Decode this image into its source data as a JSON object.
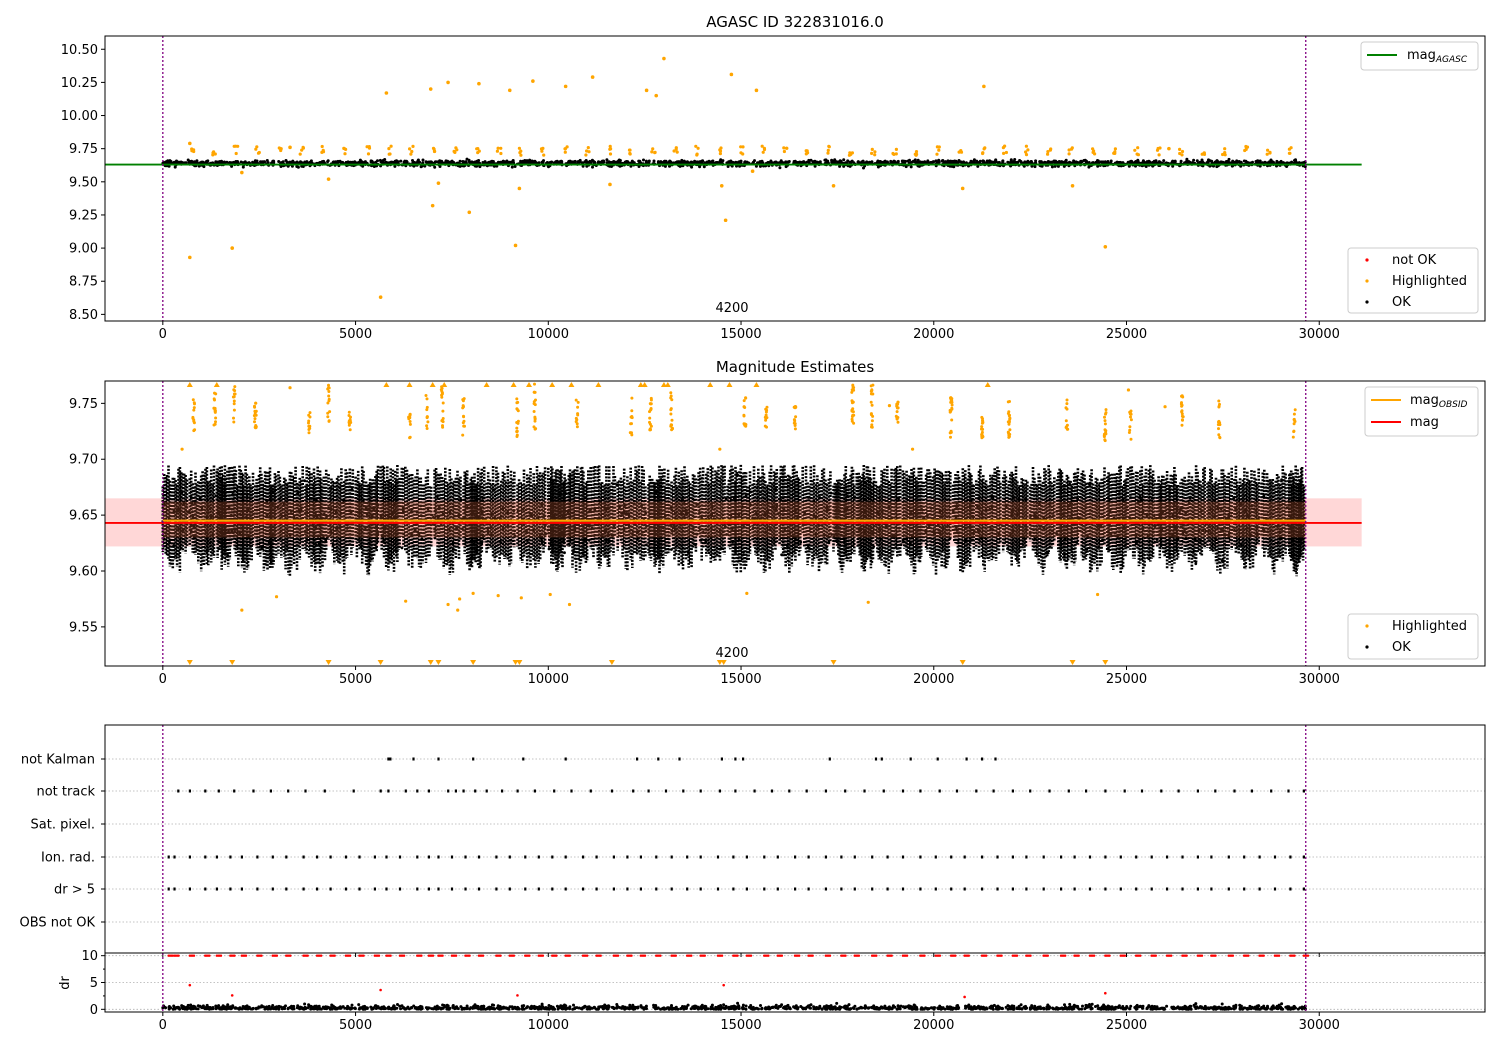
{
  "chart_data": [
    {
      "type": "scatter",
      "title": "AGASC ID 322831016.0",
      "xlim": [
        -1500,
        34300
      ],
      "ylim": [
        8.45,
        10.6
      ],
      "xticks": [
        0,
        5000,
        10000,
        15000,
        20000,
        25000,
        30000
      ],
      "yticks": [
        8.5,
        8.75,
        9.0,
        9.25,
        9.5,
        9.75,
        10.0,
        10.25,
        10.5
      ],
      "ytick_labels": [
        "8.50",
        "8.75",
        "9.00",
        "9.25",
        "9.50",
        "9.75",
        "10.00",
        "10.25",
        "10.50"
      ],
      "annotation": {
        "text": "4200",
        "x": 14700,
        "y": 8.5
      },
      "vlines": [
        0,
        29650
      ],
      "hline": {
        "y": 9.63,
        "xmin": -1500,
        "xmax": 31100,
        "color": "#008000"
      },
      "ok_band": {
        "center": 9.64,
        "halfwidth": 0.035,
        "xmin": 0,
        "xmax": 29650,
        "density": 2200
      },
      "highlighted_points": [
        [
          700,
          8.93
        ],
        [
          1800,
          9.0
        ],
        [
          5650,
          8.63
        ],
        [
          5800,
          10.17
        ],
        [
          6950,
          10.2
        ],
        [
          7000,
          9.32
        ],
        [
          7150,
          9.49
        ],
        [
          7400,
          10.25
        ],
        [
          7950,
          9.27
        ],
        [
          8200,
          10.24
        ],
        [
          9000,
          10.19
        ],
        [
          9150,
          9.02
        ],
        [
          9250,
          9.45
        ],
        [
          9600,
          10.26
        ],
        [
          10450,
          10.22
        ],
        [
          11150,
          10.29
        ],
        [
          11600,
          9.48
        ],
        [
          12550,
          10.19
        ],
        [
          12800,
          10.15
        ],
        [
          13000,
          10.43
        ],
        [
          14500,
          9.47
        ],
        [
          14600,
          9.21
        ],
        [
          14750,
          10.31
        ],
        [
          15400,
          10.19
        ],
        [
          17400,
          9.47
        ],
        [
          20750,
          9.45
        ],
        [
          21300,
          10.22
        ],
        [
          23600,
          9.47
        ],
        [
          24450,
          9.01
        ],
        [
          4300,
          9.52
        ],
        [
          2050,
          9.57
        ],
        [
          700,
          9.79
        ],
        [
          3300,
          9.76
        ],
        [
          15300,
          9.58
        ],
        [
          26100,
          9.75
        ]
      ],
      "legend_top": [
        {
          "name": "mag",
          "sub": "AGASC",
          "color": "#008000"
        }
      ],
      "legend_bottom": [
        {
          "name": "not OK",
          "color": "#ff0000"
        },
        {
          "name": "Highlighted",
          "color": "#ffa500"
        },
        {
          "name": "OK",
          "color": "#000000"
        }
      ]
    },
    {
      "type": "scatter",
      "title": "Magnitude Estimates",
      "xlim": [
        -1500,
        34300
      ],
      "ylim": [
        9.515,
        9.77
      ],
      "xticks": [
        0,
        5000,
        10000,
        15000,
        20000,
        25000,
        30000
      ],
      "yticks": [
        9.55,
        9.6,
        9.65,
        9.7,
        9.75
      ],
      "ytick_labels": [
        "9.55",
        "9.60",
        "9.65",
        "9.70",
        "9.75"
      ],
      "annotation": {
        "text": "4200",
        "x": 14700,
        "y": 9.52
      },
      "vlines": [
        0,
        29650
      ],
      "mag_line": {
        "y": 9.643,
        "color": "#ff0000",
        "xmin": -1500,
        "xmax": 31100
      },
      "mag_obsid_line": {
        "y": 9.645,
        "color": "#ffa500",
        "xmin": 0,
        "xmax": 29650
      },
      "mag_band": {
        "low": 9.622,
        "high": 9.665
      },
      "obs_starts": [
        0,
        700,
        1400,
        1800,
        2400,
        3000,
        3700,
        4300,
        5000,
        5650,
        6200,
        7050,
        7800,
        8400,
        9200,
        10000,
        10500,
        11100,
        11800,
        12600,
        13200,
        13900,
        14650,
        15300,
        16000,
        16600,
        17400,
        18000,
        18500,
        19200,
        19800,
        20500,
        21100,
        21800,
        22500,
        23200,
        23800,
        24500,
        25100,
        25800,
        26400,
        27100,
        27800,
        28500,
        29200
      ],
      "highlighted_clusters": [
        800,
        1350,
        1850,
        2400,
        3800,
        4300,
        4850,
        6400,
        6850,
        7250,
        7800,
        9200,
        9650,
        10750,
        12150,
        12650,
        13200,
        15100,
        15650,
        16400,
        17900,
        18400,
        19050,
        20450,
        21250,
        21950,
        23450,
        24450,
        25100,
        26450,
        27400,
        29350
      ],
      "highlighted_points": [
        [
          2050,
          9.565
        ],
        [
          2950,
          9.577
        ],
        [
          6300,
          9.573
        ],
        [
          7400,
          9.57
        ],
        [
          7650,
          9.565
        ],
        [
          7700,
          9.575
        ],
        [
          8050,
          9.58
        ],
        [
          8700,
          9.578
        ],
        [
          9300,
          9.576
        ],
        [
          10050,
          9.579
        ],
        [
          10550,
          9.57
        ],
        [
          15150,
          9.58
        ],
        [
          18300,
          9.572
        ],
        [
          24250,
          9.579
        ],
        [
          14450,
          9.709
        ],
        [
          19450,
          9.709
        ],
        [
          25050,
          9.762
        ],
        [
          3300,
          9.764
        ],
        [
          500,
          9.709
        ],
        [
          12500,
          9.766
        ],
        [
          18850,
          9.748
        ],
        [
          26000,
          9.747
        ]
      ],
      "upper_markers": [
        700,
        1400,
        5800,
        6400,
        7000,
        7300,
        8400,
        9100,
        9500,
        10100,
        10600,
        11300,
        12400,
        12500,
        13000,
        13100,
        14200,
        14700,
        15400,
        21400
      ],
      "lower_markers": [
        700,
        1800,
        4300,
        5650,
        6950,
        7150,
        8050,
        9150,
        9250,
        11650,
        14450,
        14550,
        17400,
        20750,
        23600,
        24450
      ],
      "legend_top": [
        {
          "name": "mag",
          "sub": "OBSID",
          "color": "#ffa500"
        },
        {
          "name": "mag",
          "sub": "",
          "color": "#ff0000"
        }
      ],
      "legend_bottom": [
        {
          "name": "Highlighted",
          "color": "#ffa500"
        },
        {
          "name": "OK",
          "color": "#000000"
        }
      ]
    },
    {
      "type": "scatter",
      "xlim": [
        -1500,
        34300
      ],
      "flag_labels": [
        "not Kalman",
        "not track",
        "Sat. pixel.",
        "Ion. rad.",
        "dr > 5",
        "OBS not OK"
      ],
      "flag_marks": {
        "not Kalman": [
          5850,
          5900,
          6500,
          7150,
          8050,
          9350,
          10450,
          12300,
          12850,
          13400,
          14500,
          14850,
          15050,
          17300,
          18500,
          18650,
          19400,
          20100,
          20850,
          21250,
          21600
        ],
        "not track": [
          400,
          700,
          1100,
          1450,
          1850,
          2350,
          2800,
          3250,
          3700,
          4200,
          4950,
          5650,
          5850,
          6300,
          6600,
          6900,
          7400,
          7600,
          7800,
          8100,
          8400,
          8800,
          9200,
          9650,
          10150,
          10600,
          11100,
          11650,
          12200,
          12600,
          13050,
          13500,
          13950,
          14450,
          14850,
          15350,
          15800,
          16250,
          16700,
          17200,
          17700,
          18200,
          18700,
          19200,
          19650,
          20150,
          20600,
          21100,
          21550,
          22050,
          22500,
          23000,
          23500,
          23950,
          24450,
          24950,
          25400,
          25900,
          26350,
          26850,
          27300,
          27800,
          28250,
          28750,
          29200,
          29600
        ],
        "Sat. pixel.": [],
        "Ion. rad.": [
          150,
          300,
          700,
          1100,
          1400,
          1750,
          2050,
          2450,
          2850,
          3200,
          3650,
          4000,
          4350,
          4750,
          5100,
          5500,
          5800,
          6150,
          6600,
          6900,
          7150,
          7500,
          7850,
          8200,
          8650,
          9000,
          9400,
          9750,
          10100,
          10450,
          10900,
          11250,
          11700,
          12050,
          12400,
          12800,
          13200,
          13600,
          13950,
          14400,
          14800,
          15150,
          15600,
          15950,
          16400,
          16750,
          17200,
          17600,
          17950,
          18400,
          18800,
          19200,
          19650,
          20050,
          20450,
          20800,
          21250,
          21650,
          22050,
          22400,
          22850,
          23300,
          23650,
          24050,
          24450,
          24850,
          25250,
          25650,
          26050,
          26450,
          26850,
          27200,
          27650,
          28050,
          28450,
          28850,
          29250,
          29600
        ],
        "dr > 5": [
          150,
          300,
          700,
          1100,
          1400,
          1750,
          2050,
          2450,
          2850,
          3200,
          3650,
          4000,
          4350,
          4750,
          5100,
          5500,
          5800,
          6150,
          6600,
          6900,
          7150,
          7500,
          7850,
          8200,
          8650,
          9000,
          9400,
          9750,
          10100,
          10450,
          10900,
          11250,
          11700,
          12050,
          12400,
          12800,
          13200,
          13600,
          13950,
          14400,
          14800,
          15150,
          15600,
          15950,
          16400,
          16750,
          17200,
          17600,
          17950,
          18400,
          18800,
          19200,
          19650,
          20050,
          20450,
          20800,
          21250,
          21650,
          22050,
          22400,
          22850,
          23300,
          23650,
          24050,
          24450,
          24850,
          25250,
          25650,
          26050,
          26450,
          26850,
          27200,
          27650,
          28050,
          28450,
          28850,
          29250,
          29600
        ],
        "OBS not OK": []
      },
      "vlines": [
        0,
        29650
      ]
    },
    {
      "type": "scatter",
      "ylabel": "dr",
      "xlim": [
        -1500,
        34300
      ],
      "ylim": [
        -0.5,
        10.5
      ],
      "xticks": [
        0,
        5000,
        10000,
        15000,
        20000,
        25000,
        30000
      ],
      "yticks": [
        0,
        5,
        10
      ],
      "ytick_labels": [
        "0",
        "5",
        "10"
      ],
      "vlines": [
        0,
        29650
      ],
      "dr_ok_range": [
        0,
        1.6
      ],
      "dr_clipped_value": 10,
      "dr_outliers": [
        [
          700,
          4.5
        ],
        [
          5650,
          3.6
        ],
        [
          14550,
          4.5
        ],
        [
          24450,
          3.0
        ],
        [
          1800,
          2.6
        ],
        [
          9200,
          2.6
        ],
        [
          20800,
          2.3
        ]
      ]
    }
  ]
}
